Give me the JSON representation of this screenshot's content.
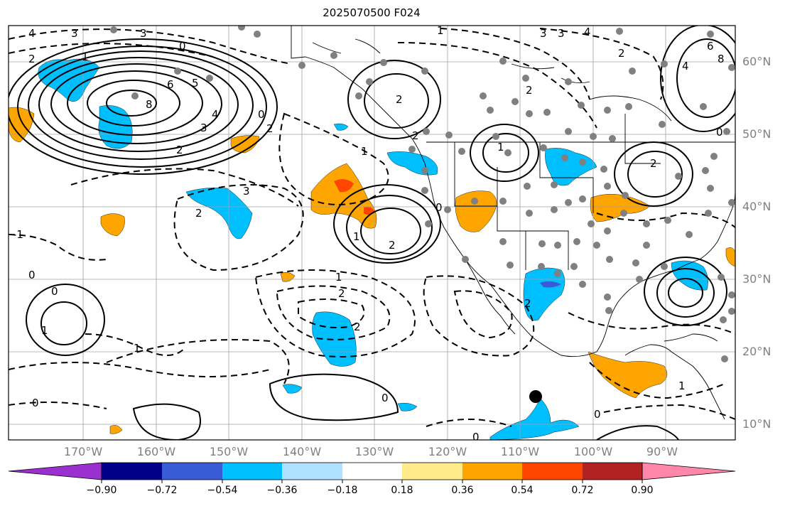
{
  "title": "2025070500 F024",
  "map": {
    "lat_labels": [
      "60°N",
      "50°N",
      "40°N",
      "30°N",
      "20°N",
      "10°N"
    ],
    "lon_labels": [
      "170°W",
      "160°W",
      "150°W",
      "140°W",
      "130°W",
      "120°W",
      "110°W",
      "100°W",
      "90°W"
    ],
    "contour_labels": [
      "4",
      "3",
      "3",
      "0",
      "2",
      "1",
      "6",
      "8",
      "3",
      "4",
      "5",
      "0",
      "2",
      "2",
      "0",
      "3",
      "2",
      "-1",
      "0",
      "0",
      "1",
      "1",
      "1",
      "2",
      "2",
      "1",
      "2",
      "0",
      "0",
      "1",
      "2",
      "2",
      "0",
      "0",
      "1",
      "1",
      "2",
      "4",
      "4",
      "2",
      "6",
      "8",
      "3",
      "2",
      "3",
      "2",
      "1",
      "0"
    ],
    "colors": {
      "positive_contour": "#000000",
      "negative_contour": "#000000",
      "grid": "#a0a0a0",
      "coast": "#000000",
      "station_dot": "#808080",
      "marker": "#000000"
    }
  },
  "colorbar": {
    "colors": [
      "#9b30d0",
      "#00008b",
      "#3a5bd6",
      "#00bfff",
      "#b0e0ff",
      "#ffffff",
      "#ffeb8a",
      "#ffa500",
      "#ff4500",
      "#b22222",
      "#ff88aa"
    ],
    "tick_labels": [
      "−0.90",
      "−0.72",
      "−0.54",
      "−0.36",
      "−0.18",
      "0.18",
      "0.36",
      "0.54",
      "0.72",
      "0.90"
    ]
  }
}
